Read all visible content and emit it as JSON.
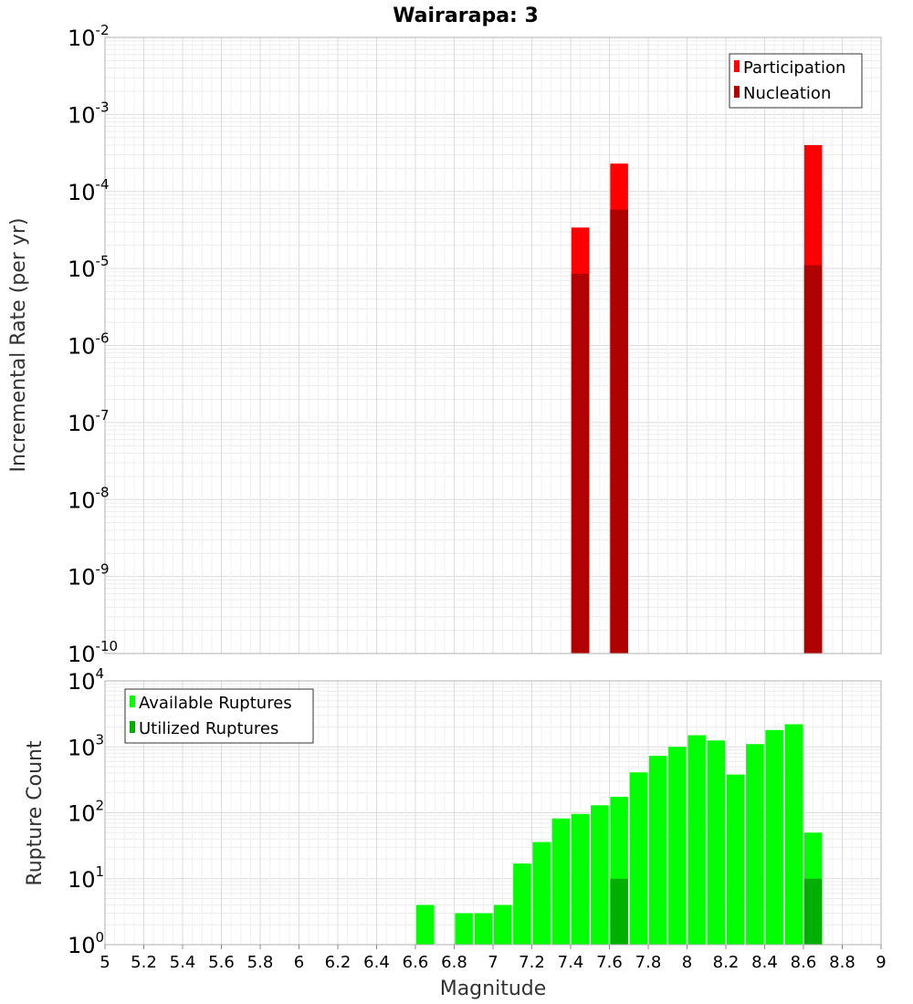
{
  "chart_data": [
    {
      "type": "bar",
      "title": "Wairarapa: 3",
      "xlabel": "Magnitude",
      "ylabel": "Incremental Rate (per yr)",
      "y_scale": "log",
      "ylim_exponents": [
        -10,
        -2
      ],
      "xlim": [
        5,
        9
      ],
      "grid": true,
      "legend_position": "top-right",
      "series": [
        {
          "name": "Participation",
          "color": "#ff0000",
          "x": [
            7.45,
            7.65,
            8.65
          ],
          "values": [
            3.4e-05,
            0.00023,
            0.0004
          ]
        },
        {
          "name": "Nucleation",
          "color": "#b00000",
          "x": [
            7.45,
            7.65,
            8.65
          ],
          "values": [
            8.5e-06,
            5.8e-05,
            1.1e-05
          ]
        }
      ]
    },
    {
      "type": "bar",
      "title": "",
      "xlabel": "Magnitude",
      "ylabel": "Rupture Count",
      "y_scale": "log",
      "ylim_exponents": [
        0,
        4
      ],
      "xlim": [
        5,
        9
      ],
      "x_ticks": [
        "5",
        "5.2",
        "5.4",
        "5.6",
        "5.8",
        "6",
        "6.2",
        "6.4",
        "6.6",
        "6.8",
        "7",
        "7.2",
        "7.4",
        "7.6",
        "7.8",
        "8",
        "8.2",
        "8.4",
        "8.6",
        "8.8",
        "9"
      ],
      "grid": true,
      "legend_position": "top-left",
      "series": [
        {
          "name": "Available Ruptures",
          "color": "#00ff00",
          "x": [
            6.65,
            6.85,
            6.95,
            7.05,
            7.15,
            7.25,
            7.35,
            7.45,
            7.55,
            7.65,
            7.75,
            7.85,
            7.95,
            8.05,
            8.15,
            8.25,
            8.35,
            8.45,
            8.55,
            8.65
          ],
          "values": [
            4,
            3,
            3,
            4,
            17,
            36,
            82,
            96,
            130,
            175,
            410,
            730,
            1000,
            1500,
            1250,
            380,
            1100,
            1800,
            2200,
            50
          ]
        },
        {
          "name": "Utilized Ruptures",
          "color": "#00b000",
          "x": [
            7.45,
            7.65,
            8.65
          ],
          "values": [
            1,
            10,
            10
          ]
        }
      ]
    }
  ]
}
